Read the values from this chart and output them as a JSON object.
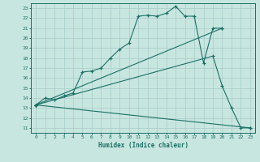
{
  "xlabel": "Humidex (Indice chaleur)",
  "bg_color": "#c8e6e0",
  "line_color": "#1a7065",
  "grid_color": "#a8ccc8",
  "xlim": [
    -0.5,
    23.5
  ],
  "ylim": [
    10.5,
    23.5
  ],
  "xticks": [
    0,
    1,
    2,
    3,
    4,
    5,
    6,
    7,
    8,
    9,
    10,
    11,
    12,
    13,
    14,
    15,
    16,
    17,
    18,
    19,
    20,
    21,
    22,
    23
  ],
  "yticks": [
    11,
    12,
    13,
    14,
    15,
    16,
    17,
    18,
    19,
    20,
    21,
    22,
    23
  ],
  "lines": [
    {
      "x": [
        0,
        1,
        2,
        3,
        4,
        5,
        6,
        7,
        8,
        9,
        10,
        11,
        12,
        13,
        14,
        15,
        16,
        17,
        18,
        19,
        20
      ],
      "y": [
        13.3,
        14.0,
        13.8,
        14.2,
        14.5,
        16.6,
        16.7,
        17.0,
        18.0,
        18.9,
        19.5,
        22.2,
        22.3,
        22.2,
        22.5,
        23.2,
        22.2,
        22.2,
        17.5,
        21.0,
        21.0
      ]
    },
    {
      "x": [
        0,
        20
      ],
      "y": [
        13.3,
        21.0
      ]
    },
    {
      "x": [
        0,
        19,
        20,
        21,
        22,
        23
      ],
      "y": [
        13.3,
        18.2,
        15.2,
        13.0,
        11.0,
        11.0
      ]
    },
    {
      "x": [
        0,
        23
      ],
      "y": [
        13.3,
        11.0
      ]
    }
  ]
}
